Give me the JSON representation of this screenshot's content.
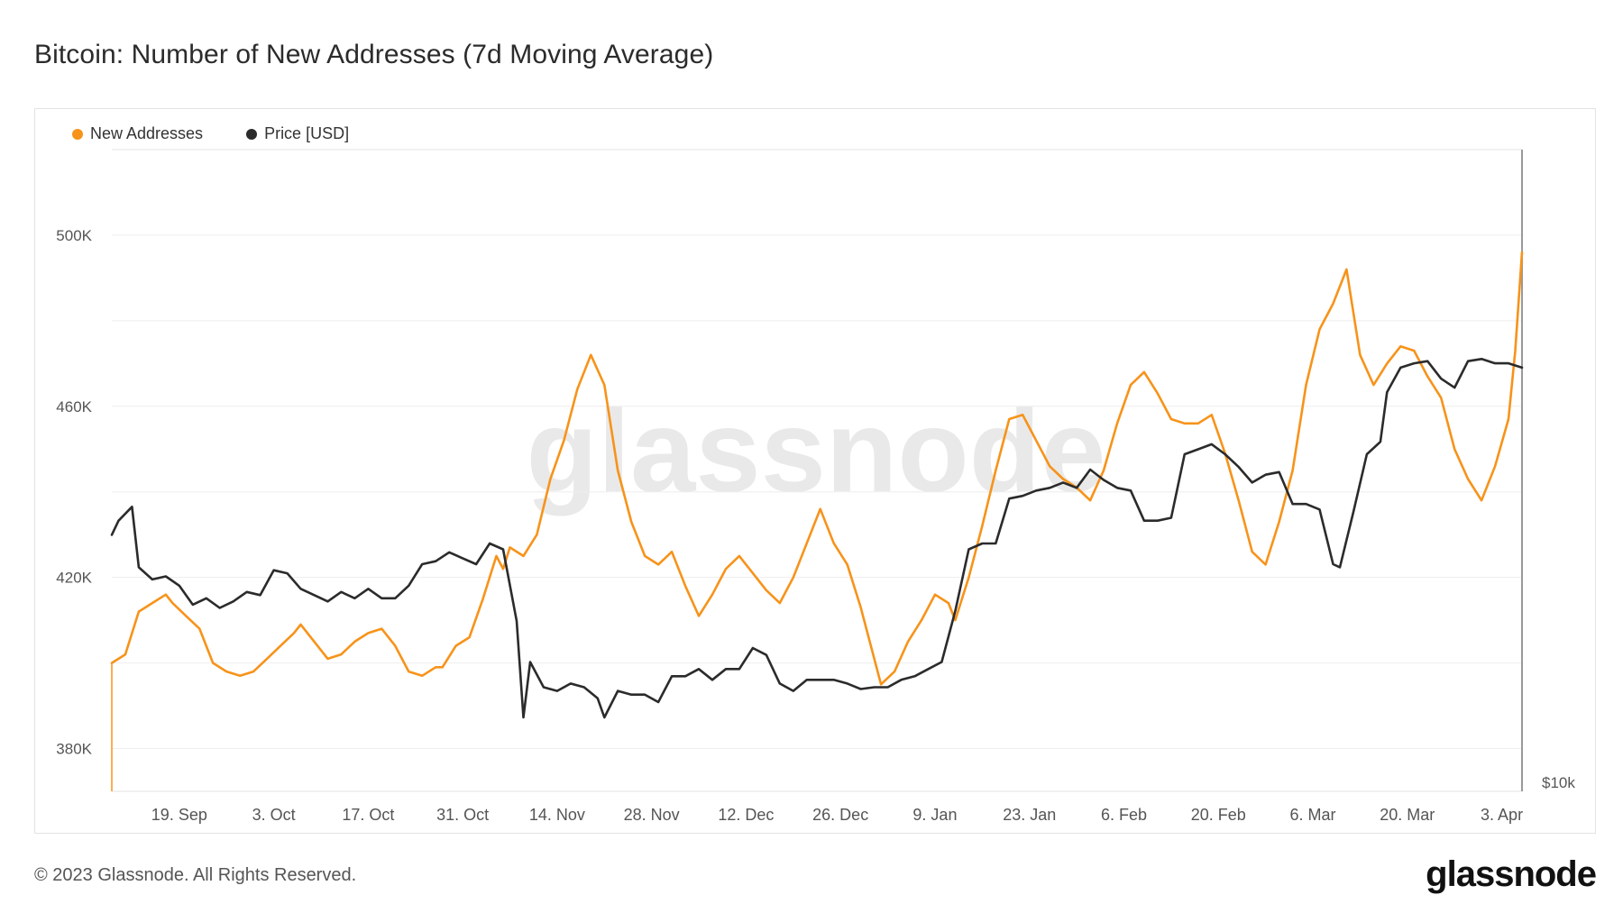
{
  "title": "Bitcoin: Number of New Addresses (7d Moving Average)",
  "footer": {
    "copyright": "© 2023 Glassnode. All Rights Reserved.",
    "logo": "glassnode"
  },
  "watermark": "glassnode",
  "colors": {
    "new_addresses": "#f7931a",
    "price": "#2b2b2b",
    "grid": "#eeeeee",
    "axis_text": "#555555"
  },
  "chart_data": {
    "type": "line",
    "title": "Bitcoin: Number of New Addresses (7d Moving Average)",
    "legend_position": "top-left",
    "grid": true,
    "x_range": [
      "2022-09-09",
      "2023-04-06"
    ],
    "x_ticks": [
      {
        "date": "2022-09-19",
        "label": "19. Sep"
      },
      {
        "date": "2022-10-03",
        "label": "3. Oct"
      },
      {
        "date": "2022-10-17",
        "label": "17. Oct"
      },
      {
        "date": "2022-10-31",
        "label": "31. Oct"
      },
      {
        "date": "2022-11-14",
        "label": "14. Nov"
      },
      {
        "date": "2022-11-28",
        "label": "28. Nov"
      },
      {
        "date": "2022-12-12",
        "label": "12. Dec"
      },
      {
        "date": "2022-12-26",
        "label": "26. Dec"
      },
      {
        "date": "2023-01-09",
        "label": "9. Jan"
      },
      {
        "date": "2023-01-23",
        "label": "23. Jan"
      },
      {
        "date": "2023-02-06",
        "label": "6. Feb"
      },
      {
        "date": "2023-02-20",
        "label": "20. Feb"
      },
      {
        "date": "2023-03-06",
        "label": "6. Mar"
      },
      {
        "date": "2023-03-20",
        "label": "20. Mar"
      },
      {
        "date": "2023-04-03",
        "label": "3. Apr"
      }
    ],
    "y_left": {
      "ylim": [
        370000,
        520000
      ],
      "ticks": [
        {
          "value": 380000,
          "label": "380K"
        },
        {
          "value": 420000,
          "label": "420K"
        },
        {
          "value": 460000,
          "label": "460K"
        },
        {
          "value": 500000,
          "label": "500K"
        }
      ]
    },
    "y_right": {
      "scale": "log",
      "label": "$10k"
    },
    "series": [
      {
        "name": "New Addresses",
        "axis": "left",
        "points": [
          [
            "2022-09-09",
            400000
          ],
          [
            "2022-09-11",
            402000
          ],
          [
            "2022-09-13",
            412000
          ],
          [
            "2022-09-15",
            414000
          ],
          [
            "2022-09-17",
            416000
          ],
          [
            "2022-09-18",
            414000
          ],
          [
            "2022-09-20",
            411000
          ],
          [
            "2022-09-22",
            408000
          ],
          [
            "2022-09-24",
            400000
          ],
          [
            "2022-09-26",
            398000
          ],
          [
            "2022-09-28",
            397000
          ],
          [
            "2022-09-30",
            398000
          ],
          [
            "2022-10-02",
            401000
          ],
          [
            "2022-10-04",
            404000
          ],
          [
            "2022-10-06",
            407000
          ],
          [
            "2022-10-07",
            409000
          ],
          [
            "2022-10-09",
            405000
          ],
          [
            "2022-10-11",
            401000
          ],
          [
            "2022-10-13",
            402000
          ],
          [
            "2022-10-15",
            405000
          ],
          [
            "2022-10-17",
            407000
          ],
          [
            "2022-10-19",
            408000
          ],
          [
            "2022-10-21",
            404000
          ],
          [
            "2022-10-23",
            398000
          ],
          [
            "2022-10-25",
            397000
          ],
          [
            "2022-10-27",
            399000
          ],
          [
            "2022-10-28",
            399000
          ],
          [
            "2022-10-30",
            404000
          ],
          [
            "2022-11-01",
            406000
          ],
          [
            "2022-11-03",
            415000
          ],
          [
            "2022-11-05",
            425000
          ],
          [
            "2022-11-06",
            422000
          ],
          [
            "2022-11-07",
            427000
          ],
          [
            "2022-11-09",
            425000
          ],
          [
            "2022-11-11",
            430000
          ],
          [
            "2022-11-13",
            443000
          ],
          [
            "2022-11-15",
            452000
          ],
          [
            "2022-11-17",
            464000
          ],
          [
            "2022-11-19",
            472000
          ],
          [
            "2022-11-21",
            465000
          ],
          [
            "2022-11-23",
            445000
          ],
          [
            "2022-11-25",
            433000
          ],
          [
            "2022-11-27",
            425000
          ],
          [
            "2022-11-29",
            423000
          ],
          [
            "2022-12-01",
            426000
          ],
          [
            "2022-12-03",
            418000
          ],
          [
            "2022-12-05",
            411000
          ],
          [
            "2022-12-07",
            416000
          ],
          [
            "2022-12-09",
            422000
          ],
          [
            "2022-12-11",
            425000
          ],
          [
            "2022-12-13",
            421000
          ],
          [
            "2022-12-15",
            417000
          ],
          [
            "2022-12-17",
            414000
          ],
          [
            "2022-12-19",
            420000
          ],
          [
            "2022-12-21",
            428000
          ],
          [
            "2022-12-23",
            436000
          ],
          [
            "2022-12-25",
            428000
          ],
          [
            "2022-12-27",
            423000
          ],
          [
            "2022-12-29",
            413000
          ],
          [
            "2023-01-01",
            395000
          ],
          [
            "2023-01-03",
            398000
          ],
          [
            "2023-01-05",
            405000
          ],
          [
            "2023-01-07",
            410000
          ],
          [
            "2023-01-09",
            416000
          ],
          [
            "2023-01-11",
            414000
          ],
          [
            "2023-01-12",
            410000
          ],
          [
            "2023-01-14",
            420000
          ],
          [
            "2023-01-16",
            432000
          ],
          [
            "2023-01-18",
            445000
          ],
          [
            "2023-01-20",
            457000
          ],
          [
            "2023-01-22",
            458000
          ],
          [
            "2023-01-24",
            452000
          ],
          [
            "2023-01-26",
            446000
          ],
          [
            "2023-01-28",
            443000
          ],
          [
            "2023-01-30",
            441000
          ],
          [
            "2023-02-01",
            438000
          ],
          [
            "2023-02-03",
            445000
          ],
          [
            "2023-02-05",
            456000
          ],
          [
            "2023-02-07",
            465000
          ],
          [
            "2023-02-09",
            468000
          ],
          [
            "2023-02-11",
            463000
          ],
          [
            "2023-02-13",
            457000
          ],
          [
            "2023-02-15",
            456000
          ],
          [
            "2023-02-17",
            456000
          ],
          [
            "2023-02-19",
            458000
          ],
          [
            "2023-02-21",
            449000
          ],
          [
            "2023-02-23",
            438000
          ],
          [
            "2023-02-25",
            426000
          ],
          [
            "2023-02-27",
            423000
          ],
          [
            "2023-03-01",
            433000
          ],
          [
            "2023-03-03",
            445000
          ],
          [
            "2023-03-05",
            465000
          ],
          [
            "2023-03-07",
            478000
          ],
          [
            "2023-03-09",
            484000
          ],
          [
            "2023-03-11",
            492000
          ],
          [
            "2023-03-13",
            472000
          ],
          [
            "2023-03-15",
            465000
          ],
          [
            "2023-03-17",
            470000
          ],
          [
            "2023-03-19",
            474000
          ],
          [
            "2023-03-21",
            473000
          ],
          [
            "2023-03-23",
            467000
          ],
          [
            "2023-03-25",
            462000
          ],
          [
            "2023-03-27",
            450000
          ],
          [
            "2023-03-29",
            443000
          ],
          [
            "2023-03-31",
            438000
          ],
          [
            "2023-04-02",
            446000
          ],
          [
            "2023-04-04",
            457000
          ],
          [
            "2023-04-05",
            473000
          ],
          [
            "2023-04-06",
            496000
          ]
        ]
      },
      {
        "name": "Price [USD]",
        "axis": "right",
        "points": [
          [
            "2022-09-09",
            21300
          ],
          [
            "2022-09-10",
            21800
          ],
          [
            "2022-09-12",
            22300
          ],
          [
            "2022-09-13",
            20200
          ],
          [
            "2022-09-15",
            19800
          ],
          [
            "2022-09-17",
            19900
          ],
          [
            "2022-09-19",
            19600
          ],
          [
            "2022-09-21",
            19000
          ],
          [
            "2022-09-23",
            19200
          ],
          [
            "2022-09-25",
            18900
          ],
          [
            "2022-09-27",
            19100
          ],
          [
            "2022-09-29",
            19400
          ],
          [
            "2022-10-01",
            19300
          ],
          [
            "2022-10-03",
            20100
          ],
          [
            "2022-10-05",
            20000
          ],
          [
            "2022-10-07",
            19500
          ],
          [
            "2022-10-09",
            19300
          ],
          [
            "2022-10-11",
            19100
          ],
          [
            "2022-10-13",
            19400
          ],
          [
            "2022-10-15",
            19200
          ],
          [
            "2022-10-17",
            19500
          ],
          [
            "2022-10-19",
            19200
          ],
          [
            "2022-10-21",
            19200
          ],
          [
            "2022-10-23",
            19600
          ],
          [
            "2022-10-25",
            20300
          ],
          [
            "2022-10-27",
            20400
          ],
          [
            "2022-10-29",
            20700
          ],
          [
            "2022-10-31",
            20500
          ],
          [
            "2022-11-02",
            20300
          ],
          [
            "2022-11-04",
            21000
          ],
          [
            "2022-11-06",
            20800
          ],
          [
            "2022-11-08",
            18500
          ],
          [
            "2022-11-09",
            15800
          ],
          [
            "2022-11-10",
            17300
          ],
          [
            "2022-11-12",
            16600
          ],
          [
            "2022-11-14",
            16500
          ],
          [
            "2022-11-16",
            16700
          ],
          [
            "2022-11-18",
            16600
          ],
          [
            "2022-11-20",
            16300
          ],
          [
            "2022-11-21",
            15800
          ],
          [
            "2022-11-23",
            16500
          ],
          [
            "2022-11-25",
            16400
          ],
          [
            "2022-11-27",
            16400
          ],
          [
            "2022-11-29",
            16200
          ],
          [
            "2022-12-01",
            16900
          ],
          [
            "2022-12-03",
            16900
          ],
          [
            "2022-12-05",
            17100
          ],
          [
            "2022-12-07",
            16800
          ],
          [
            "2022-12-09",
            17100
          ],
          [
            "2022-12-11",
            17100
          ],
          [
            "2022-12-13",
            17700
          ],
          [
            "2022-12-15",
            17500
          ],
          [
            "2022-12-17",
            16700
          ],
          [
            "2022-12-19",
            16500
          ],
          [
            "2022-12-21",
            16800
          ],
          [
            "2022-12-23",
            16800
          ],
          [
            "2022-12-25",
            16800
          ],
          [
            "2022-12-27",
            16700
          ],
          [
            "2022-12-29",
            16550
          ],
          [
            "2022-12-31",
            16600
          ],
          [
            "2023-01-02",
            16600
          ],
          [
            "2023-01-04",
            16800
          ],
          [
            "2023-01-06",
            16900
          ],
          [
            "2023-01-08",
            17100
          ],
          [
            "2023-01-10",
            17300
          ],
          [
            "2023-01-12",
            18800
          ],
          [
            "2023-01-14",
            20800
          ],
          [
            "2023-01-16",
            21000
          ],
          [
            "2023-01-18",
            21000
          ],
          [
            "2023-01-20",
            22600
          ],
          [
            "2023-01-22",
            22700
          ],
          [
            "2023-01-24",
            22900
          ],
          [
            "2023-01-26",
            23000
          ],
          [
            "2023-01-28",
            23200
          ],
          [
            "2023-01-30",
            23000
          ],
          [
            "2023-02-01",
            23700
          ],
          [
            "2023-02-03",
            23300
          ],
          [
            "2023-02-05",
            23000
          ],
          [
            "2023-02-07",
            22900
          ],
          [
            "2023-02-09",
            21800
          ],
          [
            "2023-02-11",
            21800
          ],
          [
            "2023-02-13",
            21900
          ],
          [
            "2023-02-15",
            24300
          ],
          [
            "2023-02-17",
            24500
          ],
          [
            "2023-02-19",
            24700
          ],
          [
            "2023-02-21",
            24300
          ],
          [
            "2023-02-23",
            23800
          ],
          [
            "2023-02-25",
            23200
          ],
          [
            "2023-02-27",
            23500
          ],
          [
            "2023-03-01",
            23600
          ],
          [
            "2023-03-03",
            22400
          ],
          [
            "2023-03-05",
            22400
          ],
          [
            "2023-03-07",
            22200
          ],
          [
            "2023-03-09",
            20300
          ],
          [
            "2023-03-10",
            20200
          ],
          [
            "2023-03-12",
            22100
          ],
          [
            "2023-03-14",
            24300
          ],
          [
            "2023-03-16",
            24800
          ],
          [
            "2023-03-17",
            26900
          ],
          [
            "2023-03-19",
            28000
          ],
          [
            "2023-03-21",
            28200
          ],
          [
            "2023-03-23",
            28300
          ],
          [
            "2023-03-25",
            27500
          ],
          [
            "2023-03-27",
            27100
          ],
          [
            "2023-03-29",
            28300
          ],
          [
            "2023-03-31",
            28400
          ],
          [
            "2023-04-02",
            28200
          ],
          [
            "2023-04-04",
            28200
          ],
          [
            "2023-04-06",
            28000
          ]
        ]
      }
    ]
  }
}
